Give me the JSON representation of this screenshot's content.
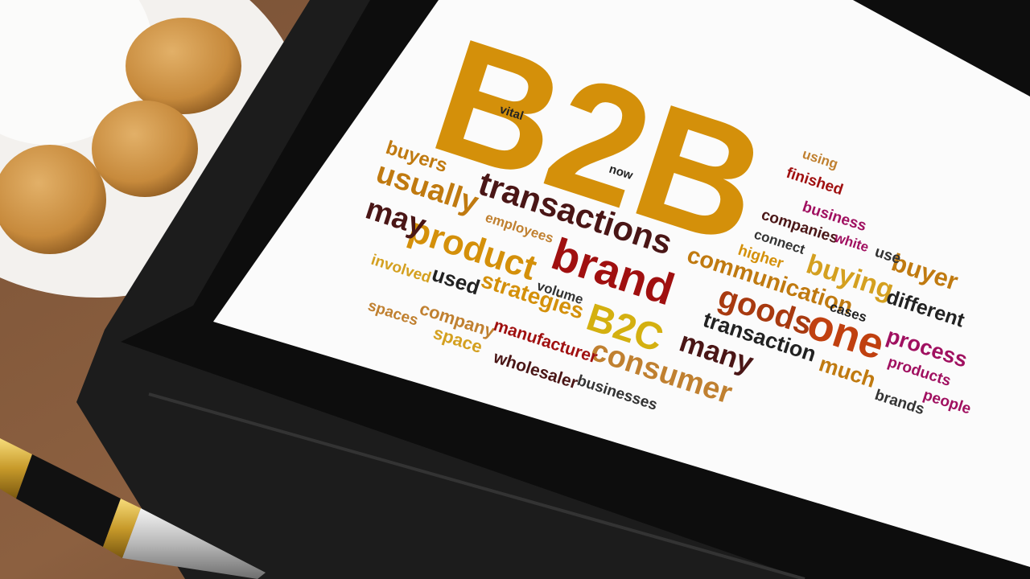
{
  "words": [
    "B2B",
    "transactions",
    "brand",
    "product",
    "usually",
    "may",
    "buyers",
    "employees",
    "involved",
    "used",
    "strategies",
    "volume",
    "B2C",
    "consumer",
    "company",
    "space",
    "spaces",
    "manufacturer",
    "wholesaler",
    "businesses",
    "communication",
    "goods",
    "many",
    "transaction",
    "one",
    "much",
    "buying",
    "buyer",
    "different",
    "process",
    "products",
    "people",
    "brands",
    "companies",
    "business",
    "connect",
    "higher",
    "finished",
    "using",
    "white",
    "use",
    "cases",
    "now",
    "vital"
  ]
}
